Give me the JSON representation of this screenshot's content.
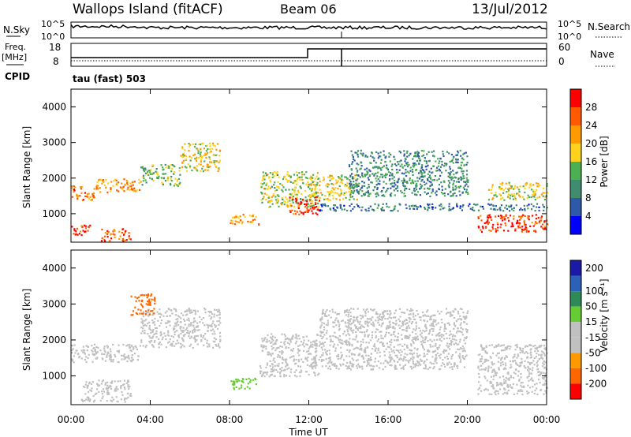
{
  "header": {
    "title": "Wallops Island (fitACF)",
    "beam": "Beam 06",
    "date": "13/Jul/2012"
  },
  "noise_panel": {
    "left_label": "N.Sky",
    "right_label": "N.Search",
    "left_ticks": [
      "10^5",
      "10^0"
    ],
    "right_ticks": [
      "10^5",
      "10^0"
    ]
  },
  "freq_panel": {
    "left_label_1": "Freq.",
    "left_label_2": "[MHz]",
    "right_label": "Nave",
    "left_ticks": [
      "18",
      "8"
    ],
    "right_ticks": [
      "60",
      "0"
    ],
    "cpid_label": "CPID",
    "cpid_value": "tau (fast) 503"
  },
  "colors": {
    "power_scale": [
      "#0000ff",
      "#2d59a8",
      "#3f8c6e",
      "#4caf50",
      "#ffd21e",
      "#ff9b00",
      "#ff5a00",
      "#ff0000"
    ],
    "velocity_scale": [
      "#1a1aa6",
      "#2c61b8",
      "#2e8b57",
      "#66cc33",
      "#c0c0c0",
      "#c0c0c0",
      "#ff9900",
      "#ff6600",
      "#ff0000"
    ]
  },
  "chart_data": [
    {
      "type": "heatmap",
      "name": "power",
      "ylabel": "Slant Range [km]",
      "yticks": [
        "1000",
        "2000",
        "3000",
        "4000"
      ],
      "ylim": [
        200,
        4500
      ],
      "xlim": [
        0,
        24
      ],
      "colorbar_label": "Power [dB]",
      "colorbar_ticks": [
        "4",
        "8",
        "12",
        "16",
        "20",
        "24",
        "28"
      ],
      "colorbar_range": [
        0,
        32
      ],
      "echo_bands": [
        {
          "t0": 0.0,
          "t1": 1.2,
          "r0": 1400,
          "r1": 1800,
          "value": 24
        },
        {
          "t0": 1.2,
          "t1": 3.5,
          "r0": 1600,
          "r1": 2000,
          "value": 22
        },
        {
          "t0": 3.5,
          "t1": 5.5,
          "r0": 1800,
          "r1": 2400,
          "value": 14
        },
        {
          "t0": 5.5,
          "t1": 7.5,
          "r0": 2200,
          "r1": 3000,
          "value": 18
        },
        {
          "t0": 0.0,
          "t1": 1.0,
          "r0": 400,
          "r1": 700,
          "value": 28
        },
        {
          "t0": 1.5,
          "t1": 3.0,
          "r0": 250,
          "r1": 600,
          "value": 26
        },
        {
          "t0": 8.0,
          "t1": 9.5,
          "r0": 700,
          "r1": 1000,
          "value": 22
        },
        {
          "t0": 9.5,
          "t1": 12.5,
          "r0": 1200,
          "r1": 2200,
          "value": 16
        },
        {
          "t0": 11.0,
          "t1": 12.5,
          "r0": 1000,
          "r1": 1500,
          "value": 28
        },
        {
          "t0": 12.0,
          "t1": 14.5,
          "r0": 1400,
          "r1": 2100,
          "value": 18
        },
        {
          "t0": 12.5,
          "t1": 24.0,
          "r0": 1100,
          "r1": 1300,
          "value": 8
        },
        {
          "t0": 14.0,
          "t1": 20.0,
          "r0": 1500,
          "r1": 2800,
          "value": 10
        },
        {
          "t0": 20.5,
          "t1": 24.0,
          "r0": 500,
          "r1": 1000,
          "value": 28
        },
        {
          "t0": 21.0,
          "t1": 24.0,
          "r0": 1400,
          "r1": 1900,
          "value": 18
        }
      ]
    },
    {
      "type": "heatmap",
      "name": "velocity",
      "ylabel": "Slant Range [km]",
      "yticks": [
        "1000",
        "2000",
        "3000",
        "4000"
      ],
      "ylim": [
        200,
        4500
      ],
      "xlim": [
        0,
        24
      ],
      "xlabel": "Time UT",
      "xticks": [
        "00:00",
        "04:00",
        "08:00",
        "12:00",
        "16:00",
        "20:00",
        "00:00"
      ],
      "colorbar_label": "Velocity [m s⁻¹]",
      "colorbar_ticks": [
        "200",
        "100",
        "50",
        "15",
        "-15",
        "-50",
        "-100",
        "-200"
      ],
      "colorbar_range": [
        -250,
        250
      ],
      "echo_bands": [
        {
          "t0": 0.0,
          "t1": 3.5,
          "r0": 1400,
          "r1": 1900,
          "value": 0
        },
        {
          "t0": 3.5,
          "t1": 7.5,
          "r0": 1800,
          "r1": 2900,
          "value": 0
        },
        {
          "t0": 0.5,
          "t1": 3.0,
          "r0": 300,
          "r1": 900,
          "value": 5
        },
        {
          "t0": 8.0,
          "t1": 9.5,
          "r0": 650,
          "r1": 950,
          "value": 40
        },
        {
          "t0": 3.0,
          "t1": 4.2,
          "r0": 2700,
          "r1": 3300,
          "value": -150
        },
        {
          "t0": 9.5,
          "t1": 12.5,
          "r0": 1000,
          "r1": 2200,
          "value": 0
        },
        {
          "t0": 12.5,
          "t1": 20.0,
          "r0": 1200,
          "r1": 2900,
          "value": 0
        },
        {
          "t0": 20.5,
          "t1": 24.0,
          "r0": 500,
          "r1": 1900,
          "value": 0
        }
      ]
    }
  ]
}
